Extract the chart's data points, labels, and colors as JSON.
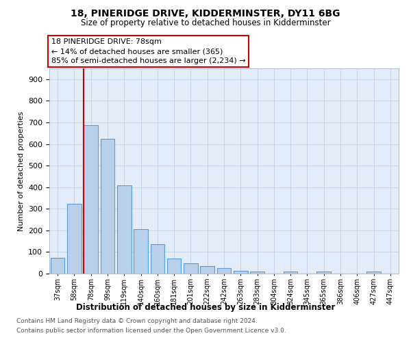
{
  "title1": "18, PINERIDGE DRIVE, KIDDERMINSTER, DY11 6BG",
  "title2": "Size of property relative to detached houses in Kidderminster",
  "xlabel": "Distribution of detached houses by size in Kidderminster",
  "ylabel": "Number of detached properties",
  "categories": [
    "37sqm",
    "58sqm",
    "78sqm",
    "99sqm",
    "119sqm",
    "140sqm",
    "160sqm",
    "181sqm",
    "201sqm",
    "222sqm",
    "242sqm",
    "263sqm",
    "283sqm",
    "304sqm",
    "324sqm",
    "345sqm",
    "365sqm",
    "386sqm",
    "406sqm",
    "427sqm",
    "447sqm"
  ],
  "values": [
    72,
    322,
    688,
    624,
    410,
    207,
    137,
    70,
    49,
    35,
    24,
    12,
    10,
    0,
    8,
    0,
    10,
    0,
    0,
    8,
    0
  ],
  "bar_color": "#b8d0ea",
  "bar_edge_color": "#5b9bd5",
  "property_bar_index": 2,
  "annotation_title": "18 PINERIDGE DRIVE: 78sqm",
  "annotation_line1": "← 14% of detached houses are smaller (365)",
  "annotation_line2": "85% of semi-detached houses are larger (2,234) →",
  "ylim_max": 950,
  "yticks": [
    0,
    100,
    200,
    300,
    400,
    500,
    600,
    700,
    800,
    900
  ],
  "footnote1": "Contains HM Land Registry data © Crown copyright and database right 2024.",
  "footnote2": "Contains public sector information licensed under the Open Government Licence v3.0.",
  "bg_color": "#ffffff",
  "grid_color": "#c8d4e8",
  "ax_bg_color": "#e4ecf7",
  "red_line_color": "#cc0000",
  "annotation_box_edge": "#cc0000"
}
